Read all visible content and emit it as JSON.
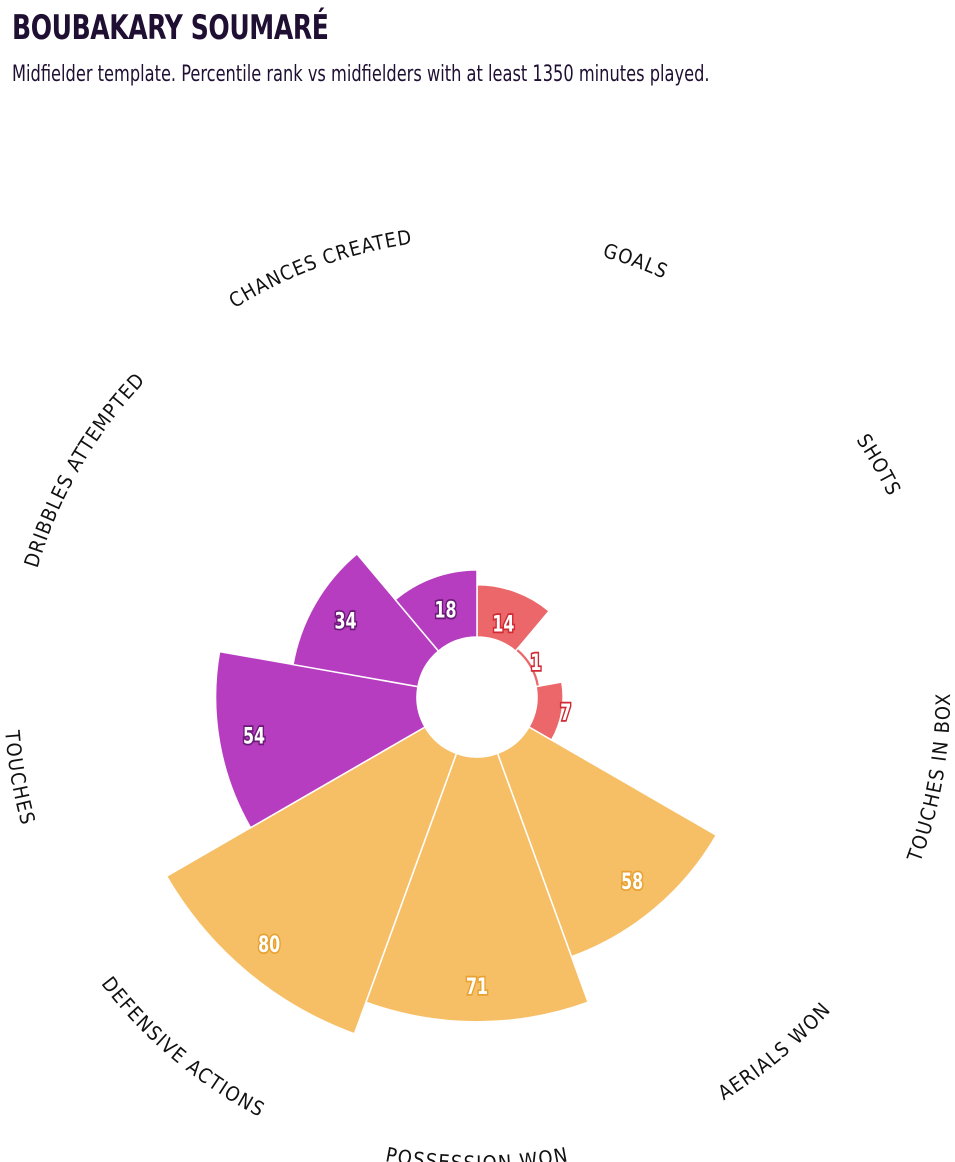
{
  "header": {
    "title": "BOUBAKARY SOUMARÉ",
    "subtitle": "Midfielder template. Percentile rank vs midfielders with at least 1350 minutes played."
  },
  "colors": {
    "attacking": "#eb6769",
    "possession": "#b73dc0",
    "defending": "#f7bf65",
    "text": "#1f0f33"
  },
  "chart_data": {
    "type": "polar_bar",
    "ylim": [
      0,
      100
    ],
    "categories": [
      {
        "label": "GOALS",
        "value": 14,
        "group": "attacking"
      },
      {
        "label": "SHOTS",
        "value": 1,
        "group": "attacking"
      },
      {
        "label": "TOUCHES IN BOX",
        "value": 7,
        "group": "attacking"
      },
      {
        "label": "AERIALS WON",
        "value": 58,
        "group": "defending"
      },
      {
        "label": "POSSESSION WON",
        "value": 71,
        "group": "defending"
      },
      {
        "label": "DEFENSIVE ACTIONS",
        "value": 80,
        "group": "defending"
      },
      {
        "label": "TOUCHES",
        "value": 54,
        "group": "possession"
      },
      {
        "label": "DRIBBLES ATTEMPTED",
        "value": 34,
        "group": "possession"
      },
      {
        "label": "CHANCES CREATED",
        "value": 18,
        "group": "possession"
      }
    ]
  }
}
